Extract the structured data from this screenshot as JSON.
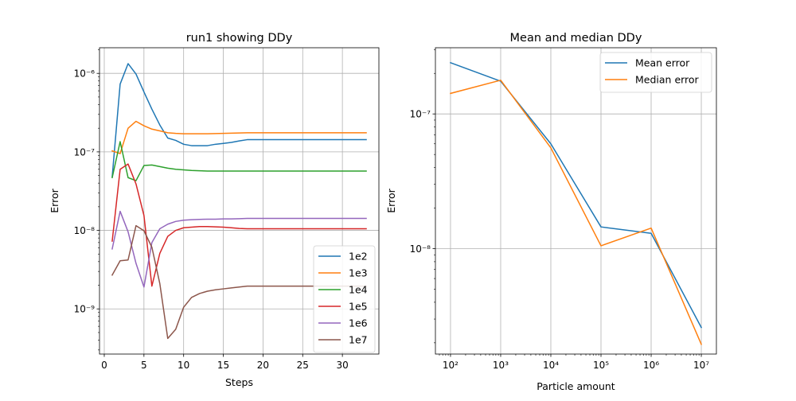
{
  "chart_data": [
    {
      "type": "line",
      "title": "run1 showing DDy",
      "xlabel": "Steps",
      "ylabel": "Error",
      "yscale": "log",
      "xlim": [
        -0.6,
        34.6
      ],
      "ylim": [
        2.66e-10,
        2.12e-06
      ],
      "x_ticks": [
        0,
        5,
        10,
        15,
        20,
        25,
        30
      ],
      "x_tick_labels": [
        "0",
        "5",
        "10",
        "15",
        "20",
        "25",
        "30"
      ],
      "y_ticks": [
        1e-09,
        1e-08,
        1e-07,
        1e-06
      ],
      "y_tick_labels": [
        "10⁻⁹",
        "10⁻⁸",
        "10⁻⁷",
        "10⁻⁶"
      ],
      "grid": true,
      "legend_position": "lower-right",
      "x": [
        1,
        2,
        3,
        4,
        5,
        6,
        7,
        8,
        9,
        10,
        11,
        12,
        13,
        14,
        15,
        16,
        17,
        18,
        19,
        20,
        21,
        22,
        23,
        24,
        25,
        26,
        27,
        28,
        29,
        30,
        31,
        32,
        33
      ],
      "series": [
        {
          "name": "1e2",
          "color": "#1f77b4",
          "values": [
            4.8e-08,
            7.3e-07,
            1.33e-06,
            9.8e-07,
            5.8e-07,
            3.5e-07,
            2.2e-07,
            1.5e-07,
            1.4e-07,
            1.25e-07,
            1.2e-07,
            1.2e-07,
            1.2e-07,
            1.25e-07,
            1.28e-07,
            1.32e-07,
            1.38e-07,
            1.43e-07,
            1.43e-07,
            1.43e-07,
            1.43e-07,
            1.43e-07,
            1.43e-07,
            1.43e-07,
            1.43e-07,
            1.43e-07,
            1.43e-07,
            1.43e-07,
            1.43e-07,
            1.43e-07,
            1.43e-07,
            1.43e-07,
            1.43e-07
          ]
        },
        {
          "name": "1e3",
          "color": "#ff7f0e",
          "values": [
            1.03e-07,
            9.5e-08,
            2e-07,
            2.45e-07,
            2.15e-07,
            1.95e-07,
            1.85e-07,
            1.75e-07,
            1.72e-07,
            1.7e-07,
            1.7e-07,
            1.7e-07,
            1.7e-07,
            1.71e-07,
            1.72e-07,
            1.73e-07,
            1.74e-07,
            1.75e-07,
            1.75e-07,
            1.75e-07,
            1.75e-07,
            1.75e-07,
            1.75e-07,
            1.75e-07,
            1.75e-07,
            1.75e-07,
            1.75e-07,
            1.75e-07,
            1.75e-07,
            1.75e-07,
            1.75e-07,
            1.75e-07,
            1.75e-07
          ]
        },
        {
          "name": "1e4",
          "color": "#2ca02c",
          "values": [
            4.7e-08,
            1.35e-07,
            4.7e-08,
            4.3e-08,
            6.7e-08,
            6.8e-08,
            6.5e-08,
            6.2e-08,
            6e-08,
            5.9e-08,
            5.8e-08,
            5.75e-08,
            5.7e-08,
            5.7e-08,
            5.7e-08,
            5.7e-08,
            5.7e-08,
            5.7e-08,
            5.7e-08,
            5.7e-08,
            5.7e-08,
            5.7e-08,
            5.7e-08,
            5.7e-08,
            5.7e-08,
            5.7e-08,
            5.7e-08,
            5.7e-08,
            5.7e-08,
            5.7e-08,
            5.7e-08,
            5.7e-08,
            5.7e-08
          ]
        },
        {
          "name": "1e5",
          "color": "#d62728",
          "values": [
            7.3e-09,
            6e-08,
            7e-08,
            3.9e-08,
            1.55e-08,
            1.95e-09,
            5.1e-09,
            8.4e-09,
            1e-08,
            1.08e-08,
            1.1e-08,
            1.12e-08,
            1.12e-08,
            1.11e-08,
            1.1e-08,
            1.08e-08,
            1.06e-08,
            1.05e-08,
            1.05e-08,
            1.05e-08,
            1.05e-08,
            1.05e-08,
            1.05e-08,
            1.05e-08,
            1.05e-08,
            1.05e-08,
            1.05e-08,
            1.05e-08,
            1.05e-08,
            1.05e-08,
            1.05e-08,
            1.05e-08,
            1.05e-08
          ]
        },
        {
          "name": "1e6",
          "color": "#9467bd",
          "values": [
            5.8e-09,
            1.75e-08,
            9.6e-09,
            3.8e-09,
            1.9e-09,
            7e-09,
            1.05e-08,
            1.2e-08,
            1.3e-08,
            1.35e-08,
            1.37e-08,
            1.38e-08,
            1.39e-08,
            1.39e-08,
            1.4e-08,
            1.4e-08,
            1.41e-08,
            1.42e-08,
            1.42e-08,
            1.42e-08,
            1.42e-08,
            1.42e-08,
            1.42e-08,
            1.42e-08,
            1.42e-08,
            1.42e-08,
            1.42e-08,
            1.42e-08,
            1.42e-08,
            1.42e-08,
            1.42e-08,
            1.42e-08,
            1.42e-08
          ]
        },
        {
          "name": "1e7",
          "color": "#8c564b",
          "values": [
            2.7e-09,
            4.1e-09,
            4.2e-09,
            1.15e-08,
            9.9e-09,
            6.1e-09,
            2.1e-09,
            4.2e-10,
            5.5e-10,
            1.05e-09,
            1.4e-09,
            1.57e-09,
            1.68e-09,
            1.75e-09,
            1.8e-09,
            1.85e-09,
            1.9e-09,
            1.95e-09,
            1.95e-09,
            1.95e-09,
            1.95e-09,
            1.95e-09,
            1.95e-09,
            1.95e-09,
            1.95e-09,
            1.95e-09,
            1.95e-09,
            1.95e-09,
            1.95e-09,
            1.95e-09,
            1.95e-09,
            1.95e-09,
            1.95e-09
          ]
        }
      ]
    },
    {
      "type": "line",
      "title": "Mean and median DDy",
      "xlabel": "Particle amount",
      "ylabel": "Error",
      "xscale": "log",
      "yscale": "log",
      "xlim": [
        50,
        20000000.0
      ],
      "ylim": [
        1.65e-09,
        3.1e-07
      ],
      "x_ticks": [
        100,
        1000,
        10000,
        100000,
        1000000,
        10000000
      ],
      "x_tick_labels": [
        "10²",
        "10³",
        "10⁴",
        "10⁵",
        "10⁶",
        "10⁷"
      ],
      "y_ticks": [
        1e-08,
        1e-07
      ],
      "y_tick_labels": [
        "10⁻⁸",
        "10⁻⁷"
      ],
      "grid": true,
      "legend_position": "top-right",
      "x": [
        100,
        1000,
        10000,
        100000,
        1000000,
        10000000
      ],
      "series": [
        {
          "name": "Mean error",
          "color": "#1f77b4",
          "values": [
            2.4e-07,
            1.75e-07,
            6e-08,
            1.45e-08,
            1.3e-08,
            2.6e-09
          ]
        },
        {
          "name": "Median error",
          "color": "#ff7f0e",
          "values": [
            1.42e-07,
            1.78e-07,
            5.6e-08,
            1.05e-08,
            1.42e-08,
            1.95e-09
          ]
        }
      ]
    }
  ]
}
